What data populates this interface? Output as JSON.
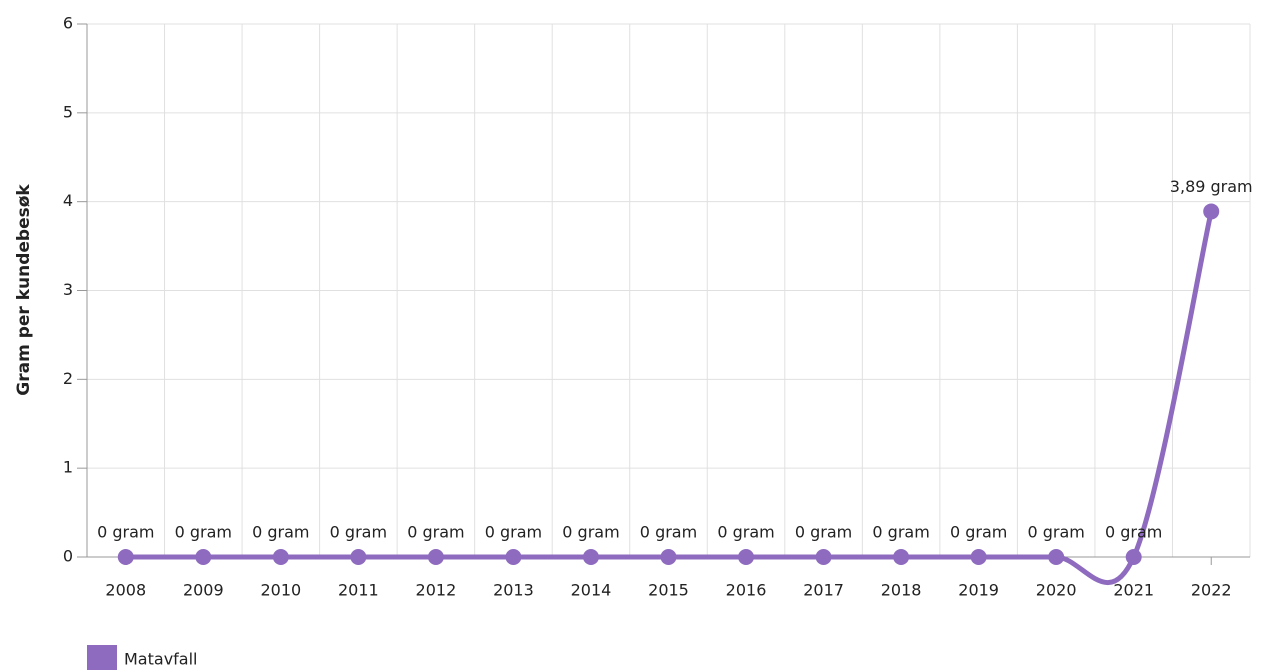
{
  "chart_data": {
    "type": "line",
    "y_label": "Gram per kundebesøk",
    "categories": [
      "2008",
      "2009",
      "2010",
      "2011",
      "2012",
      "2013",
      "2014",
      "2015",
      "2016",
      "2017",
      "2018",
      "2019",
      "2020",
      "2021",
      "2022"
    ],
    "series": [
      {
        "name": "Matavfall",
        "color": "#8e6bbf",
        "values": [
          0,
          0,
          0,
          0,
          0,
          0,
          0,
          0,
          0,
          0,
          0,
          0,
          0,
          0,
          3.89
        ],
        "value_labels": [
          "0 gram",
          "0 gram",
          "0 gram",
          "0 gram",
          "0 gram",
          "0 gram",
          "0 gram",
          "0 gram",
          "0 gram",
          "0 gram",
          "0 gram",
          "0 gram",
          "0 gram",
          "0 gram",
          "3,89 gram"
        ]
      }
    ],
    "ylim": [
      0,
      6
    ],
    "yticks": [
      0,
      1,
      2,
      3,
      4,
      5,
      6
    ],
    "grid": true,
    "legend": "bottom-left"
  }
}
